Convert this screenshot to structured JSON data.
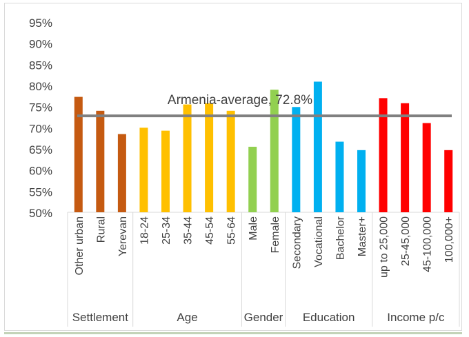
{
  "chart_data": {
    "type": "bar",
    "ylim": [
      50,
      95
    ],
    "yticks": [
      "95%",
      "90%",
      "85%",
      "80%",
      "75%",
      "70%",
      "65%",
      "60%",
      "55%",
      "50%"
    ],
    "ytick_values": [
      95,
      90,
      85,
      80,
      75,
      70,
      65,
      60,
      55,
      50
    ],
    "categories": [
      "Other urban",
      "Rural",
      "Yerevan",
      "18-24",
      "25-34",
      "35-44",
      "45-54",
      "55-64",
      "Male",
      "Female",
      "Secondary",
      "Vocational",
      "Bachelor",
      "Master+",
      "up to 25,000",
      "25-45,000",
      "45-100,000",
      "100,000+"
    ],
    "values": [
      77.3,
      74.0,
      68.5,
      70.0,
      69.3,
      75.5,
      75.8,
      74.0,
      65.5,
      79.0,
      74.9,
      80.9,
      66.7,
      64.7,
      77.0,
      75.8,
      71.1,
      64.7
    ],
    "groups": [
      {
        "name": "Settlement",
        "start": 0,
        "count": 3,
        "color": "#c55a11"
      },
      {
        "name": "Age",
        "start": 3,
        "count": 5,
        "color": "#ffc000"
      },
      {
        "name": "Gender",
        "start": 8,
        "count": 2,
        "color": "#92d050"
      },
      {
        "name": "Education",
        "start": 10,
        "count": 4,
        "color": "#00b0f0"
      },
      {
        "name": "Income p/c",
        "start": 14,
        "count": 4,
        "color": "#ff0000"
      }
    ],
    "reference_line": {
      "value": 72.8,
      "label": "Armenia-average, 72.8%",
      "color": "#808080"
    },
    "grid": true,
    "legend": "none"
  }
}
